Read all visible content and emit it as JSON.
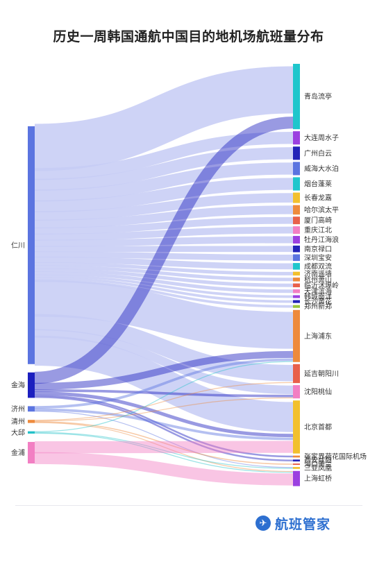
{
  "title": "历史一周韩国通航中国目的地机场航班量分布",
  "brand": {
    "name": "航班管家",
    "icon": "plane-icon"
  },
  "colors": {
    "link": "#c5cbf4"
  },
  "sources": [
    {
      "name": "仁川",
      "color": "#5b74e0"
    },
    {
      "name": "金海",
      "color": "#1c1fbf"
    },
    {
      "name": "济州",
      "color": "#5b74e0"
    },
    {
      "name": "清州",
      "color": "#ee8a3c"
    },
    {
      "name": "大邱",
      "color": "#20c0c8"
    },
    {
      "name": "金浦",
      "color": "#f27fc3"
    }
  ],
  "targets": [
    {
      "name": "青岛流亭",
      "color": "#1fc6cc"
    },
    {
      "name": "大连周水子",
      "color": "#9b40e0"
    },
    {
      "name": "广州白云",
      "color": "#2323b8"
    },
    {
      "name": "威海大水泊",
      "color": "#5b74e0"
    },
    {
      "name": "烟台蓬莱",
      "color": "#1fc6cc"
    },
    {
      "name": "长春龙嘉",
      "color": "#f2c02e"
    },
    {
      "name": "哈尔滨太平",
      "color": "#ee8a3c"
    },
    {
      "name": "厦门高崎",
      "color": "#e8604a"
    },
    {
      "name": "重庆江北",
      "color": "#f27fc3"
    },
    {
      "name": "牡丹江海浪",
      "color": "#9b40e0"
    },
    {
      "name": "南京禄口",
      "color": "#2323b8"
    },
    {
      "name": "深圳宝安",
      "color": "#5b74e0"
    },
    {
      "name": "成都双流",
      "color": "#1fc6cc"
    },
    {
      "name": "济南遥墙",
      "color": "#f2c02e"
    },
    {
      "name": "杭州萧山",
      "color": "#ee8a3c"
    },
    {
      "name": "临沂沭埠岭",
      "color": "#e8604a"
    },
    {
      "name": "天津滨海",
      "color": "#f27fc3"
    },
    {
      "name": "韩城南洋",
      "color": "#9b40e0"
    },
    {
      "name": "长沙黄花",
      "color": "#2323b8"
    },
    {
      "name": "郑州新郑",
      "color": "#9bc53d"
    },
    {
      "name": "上海浦东",
      "color": "#ee8a3c"
    },
    {
      "name": "延吉朝阳川",
      "color": "#e8604a"
    },
    {
      "name": "沈阳桃仙",
      "color": "#f27fc3"
    },
    {
      "name": "北京首都",
      "color": "#f2c02e"
    },
    {
      "name": "张家界荷花国际机场",
      "color": "#ee8a3c"
    },
    {
      "name": "西安咸阳",
      "color": "#2323b8"
    },
    {
      "name": "海口美兰",
      "color": "#e8604a"
    },
    {
      "name": "三亚凤凰",
      "color": "#f2c02e"
    },
    {
      "name": "上海虹桥",
      "color": "#9b40e0"
    }
  ],
  "flows": [
    [
      "仁川",
      "青岛流亭",
      55
    ],
    [
      "仁川",
      "大连周水子",
      14
    ],
    [
      "仁川",
      "广州白云",
      14
    ],
    [
      "仁川",
      "威海大水泊",
      14
    ],
    [
      "仁川",
      "烟台蓬莱",
      14
    ],
    [
      "仁川",
      "长春龙嘉",
      11
    ],
    [
      "仁川",
      "哈尔滨太平",
      10
    ],
    [
      "仁川",
      "厦门高崎",
      8
    ],
    [
      "仁川",
      "重庆江北",
      8
    ],
    [
      "仁川",
      "牡丹江海浪",
      8
    ],
    [
      "仁川",
      "南京禄口",
      7
    ],
    [
      "仁川",
      "深圳宝安",
      7
    ],
    [
      "仁川",
      "成都双流",
      7
    ],
    [
      "仁川",
      "济南遥墙",
      4
    ],
    [
      "仁川",
      "杭州萧山",
      4
    ],
    [
      "仁川",
      "临沂沭埠岭",
      4
    ],
    [
      "仁川",
      "天津滨海",
      4
    ],
    [
      "仁川",
      "韩城南洋",
      3
    ],
    [
      "仁川",
      "长沙黄花",
      3
    ],
    [
      "仁川",
      "郑州新郑",
      3
    ],
    [
      "仁川",
      "上海浦东",
      43
    ],
    [
      "仁川",
      "延吉朝阳川",
      19
    ],
    [
      "仁川",
      "沈阳桃仙",
      10
    ],
    [
      "仁川",
      "北京首都",
      35
    ],
    [
      "金海",
      "青岛流亭",
      14
    ],
    [
      "金海",
      "上海浦东",
      8
    ],
    [
      "金海",
      "沈阳桃仙",
      3
    ],
    [
      "金海",
      "北京首都",
      4
    ],
    [
      "金海",
      "张家界荷花国际机场",
      2
    ],
    [
      "金海",
      "西安咸阳",
      2
    ],
    [
      "济州",
      "上海浦东",
      3
    ],
    [
      "济州",
      "北京首都",
      3
    ],
    [
      "济州",
      "三亚凤凰",
      1
    ],
    [
      "清州",
      "延吉朝阳川",
      1
    ],
    [
      "清州",
      "沈阳桃仙",
      1
    ],
    [
      "清州",
      "海口美兰",
      1
    ],
    [
      "清州",
      "上海虹桥",
      1
    ],
    [
      "大邱",
      "上海浦东",
      1
    ],
    [
      "大邱",
      "三亚凤凰",
      1
    ],
    [
      "大邱",
      "上海虹桥",
      1
    ],
    [
      "金浦",
      "北京首都",
      14
    ],
    [
      "金浦",
      "上海虹桥",
      14
    ]
  ]
}
